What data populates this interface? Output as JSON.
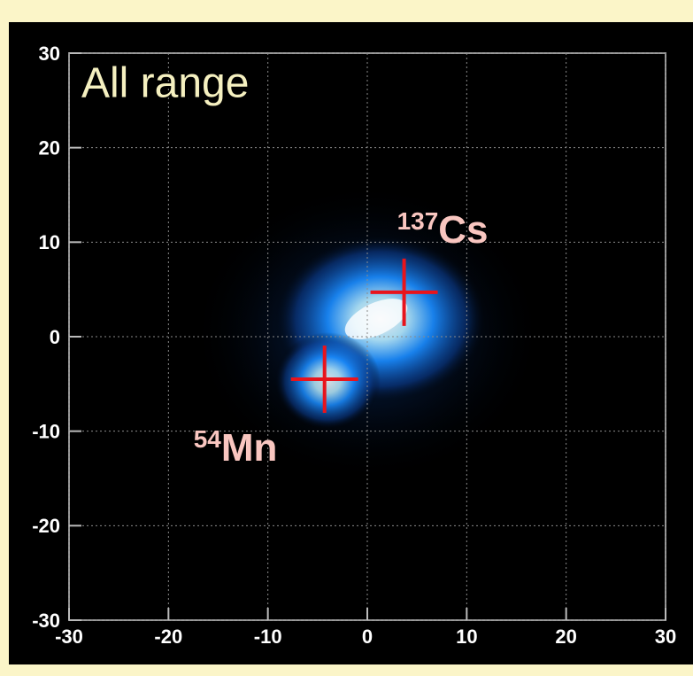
{
  "chart_data": {
    "type": "scatter",
    "title": "All range",
    "xlim": [
      -30,
      30
    ],
    "ylim": [
      -30,
      30
    ],
    "xticks": [
      -30,
      -20,
      -10,
      0,
      10,
      20,
      30
    ],
    "yticks": [
      -30,
      -20,
      -10,
      0,
      10,
      20,
      30
    ],
    "grid": true,
    "series": [
      {
        "color": "#e8141c",
        "x": [
          3.7,
          -4.3
        ],
        "values": [
          4.7,
          -4.5
        ]
      }
    ],
    "annotations": [
      {
        "mass": "137",
        "element": "Cs"
      },
      {
        "mass": "54",
        "element": "Mn"
      }
    ]
  }
}
